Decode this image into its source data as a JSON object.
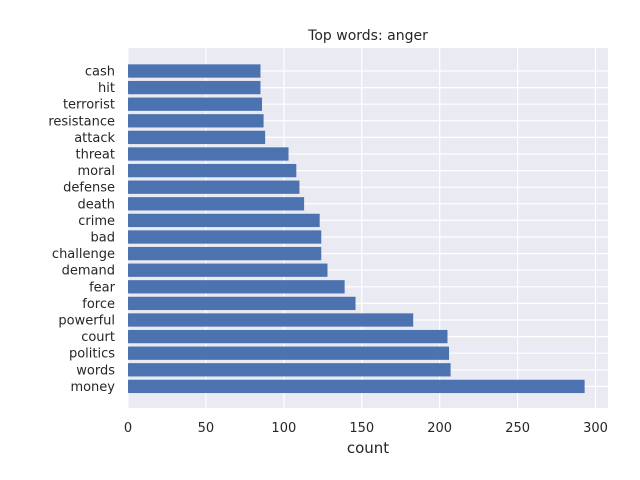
{
  "chart_data": {
    "type": "bar",
    "orientation": "horizontal",
    "title": "Top words: anger",
    "xlabel": "count",
    "ylabel": "",
    "xlim": [
      0,
      308
    ],
    "xticks": [
      0,
      50,
      100,
      150,
      200,
      250,
      300
    ],
    "grid": true,
    "bar_color": "#4c72b0",
    "background_color": "#eaeaf2",
    "categories": [
      "cash",
      "hit",
      "terrorist",
      "resistance",
      "attack",
      "threat",
      "moral",
      "defense",
      "death",
      "crime",
      "bad",
      "challenge",
      "demand",
      "fear",
      "force",
      "powerful",
      "court",
      "politics",
      "words",
      "money"
    ],
    "values": [
      85,
      85,
      86,
      87,
      88,
      103,
      108,
      110,
      113,
      123,
      124,
      124,
      128,
      139,
      146,
      183,
      205,
      206,
      207,
      293
    ]
  }
}
